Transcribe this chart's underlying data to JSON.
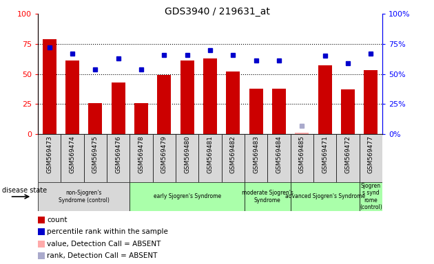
{
  "title": "GDS3940 / 219631_at",
  "samples": [
    "GSM569473",
    "GSM569474",
    "GSM569475",
    "GSM569476",
    "GSM569478",
    "GSM569479",
    "GSM569480",
    "GSM569481",
    "GSM569482",
    "GSM569483",
    "GSM569484",
    "GSM569485",
    "GSM569471",
    "GSM569472",
    "GSM569477"
  ],
  "counts": [
    79,
    61,
    26,
    43,
    26,
    49,
    61,
    63,
    52,
    38,
    38,
    1,
    57,
    37,
    53
  ],
  "ranks": [
    72,
    67,
    54,
    63,
    54,
    66,
    66,
    70,
    66,
    61,
    61,
    7,
    65,
    59,
    67
  ],
  "absent_idx": [
    11
  ],
  "bar_color": "#cc0000",
  "rank_color": "#0000cc",
  "absent_bar_color": "#ffaaaa",
  "absent_rank_color": "#aaaacc",
  "ylim": [
    0,
    100
  ],
  "yticks": [
    0,
    25,
    50,
    75,
    100
  ],
  "groups": [
    {
      "label": "non-Sjogren's\nSyndrome (control)",
      "start": 0,
      "end": 4,
      "color": "#d8d8d8"
    },
    {
      "label": "early Sjogren's Syndrome",
      "start": 4,
      "end": 9,
      "color": "#aaffaa"
    },
    {
      "label": "moderate Sjogren's\nSyndrome",
      "start": 9,
      "end": 11,
      "color": "#aaffaa"
    },
    {
      "label": "advanced Sjogren's Syndrome",
      "start": 11,
      "end": 14,
      "color": "#aaffaa"
    },
    {
      "label": "Sjogren\ns synd\nrome\n(control)",
      "start": 14,
      "end": 15,
      "color": "#aaffaa"
    }
  ],
  "legend_labels": [
    "count",
    "percentile rank within the sample",
    "value, Detection Call = ABSENT",
    "rank, Detection Call = ABSENT"
  ],
  "legend_colors": [
    "#cc0000",
    "#0000cc",
    "#ffaaaa",
    "#aaaacc"
  ]
}
